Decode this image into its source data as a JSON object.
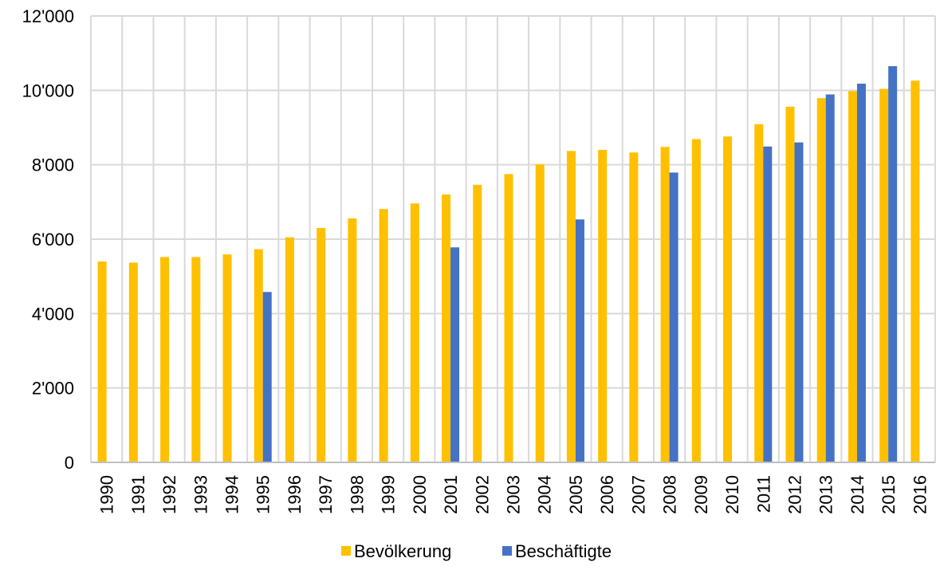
{
  "chart_data": {
    "type": "bar",
    "categories": [
      "1990",
      "1991",
      "1992",
      "1993",
      "1994",
      "1995",
      "1996",
      "1997",
      "1998",
      "1999",
      "2000",
      "2001",
      "2002",
      "2003",
      "2004",
      "2005",
      "2006",
      "2007",
      "2008",
      "2009",
      "2010",
      "2011",
      "2012",
      "2013",
      "2014",
      "2015",
      "2016"
    ],
    "series": [
      {
        "name": "Bevölkerung",
        "color": "#FFC000",
        "values": [
          5400,
          5370,
          5520,
          5520,
          5590,
          5730,
          6050,
          6300,
          6560,
          6810,
          6960,
          7200,
          7460,
          7750,
          8010,
          8370,
          8400,
          8330,
          8480,
          8690,
          8760,
          9090,
          9560,
          9790,
          9980,
          10040,
          10260
        ]
      },
      {
        "name": "Beschäftigte",
        "color": "#4472C4",
        "values": [
          null,
          null,
          null,
          null,
          null,
          4580,
          null,
          null,
          null,
          null,
          null,
          5780,
          null,
          null,
          null,
          6530,
          null,
          null,
          7790,
          null,
          null,
          8490,
          8600,
          9890,
          10180,
          10650,
          null
        ]
      }
    ],
    "ylim": [
      0,
      12000
    ],
    "yticks": [
      "0",
      "2'000",
      "4'000",
      "6'000",
      "8'000",
      "10'000",
      "12'000"
    ],
    "ytick_values": [
      0,
      2000,
      4000,
      6000,
      8000,
      10000,
      12000
    ],
    "grid": true,
    "legend_position": "bottom",
    "title": "",
    "xlabel": "",
    "ylabel": ""
  }
}
